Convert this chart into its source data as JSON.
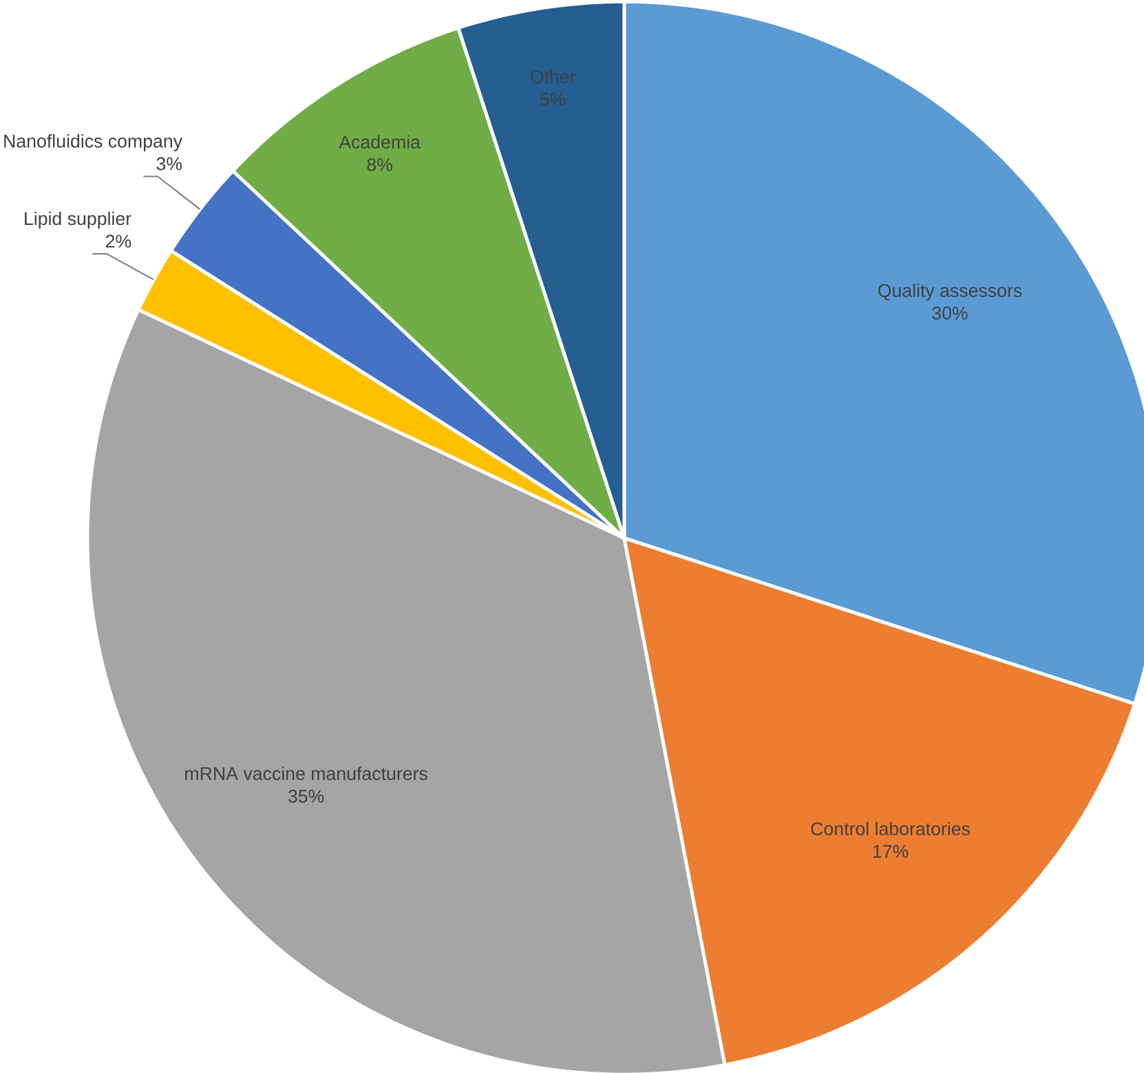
{
  "chart_data": {
    "type": "pie",
    "categories": [
      "Quality assessors",
      "Control laboratories",
      "mRNA vaccine manufacturers",
      "Lipid supplier",
      "Nanofluidics company",
      "Academia",
      "Other"
    ],
    "values": [
      30,
      17,
      35,
      2,
      3,
      8,
      5
    ],
    "value_labels": [
      "30%",
      "17%",
      "35%",
      "2%",
      "3%",
      "8%",
      "5%"
    ],
    "colors": [
      "#5b9bd5",
      "#ed7d31",
      "#a5a5a5",
      "#ffc000",
      "#4472c4",
      "#70ad47",
      "#255e91"
    ]
  }
}
